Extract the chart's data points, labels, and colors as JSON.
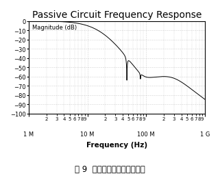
{
  "title": "Passive Circuit Frequency Response",
  "xlabel": "Frequency (Hz)",
  "ylabel": "Magnitude (dB)",
  "ylim": [
    -100,
    0
  ],
  "yticks": [
    0,
    -10,
    -20,
    -30,
    -40,
    -50,
    -60,
    -70,
    -80,
    -90,
    -100
  ],
  "xlim_log": [
    1000000.0,
    1000000000.0
  ],
  "background_color": "#ffffff",
  "plot_bg_color": "#ffffff",
  "line_color": "#000000",
  "grid_color": "#aaaaaa",
  "caption": "图 9  基带低通滤波器频率响应",
  "title_fontsize": 10,
  "axis_label_fontsize": 7.5,
  "ylabel_fontsize": 6,
  "tick_fontsize": 6,
  "caption_fontsize": 8.5
}
